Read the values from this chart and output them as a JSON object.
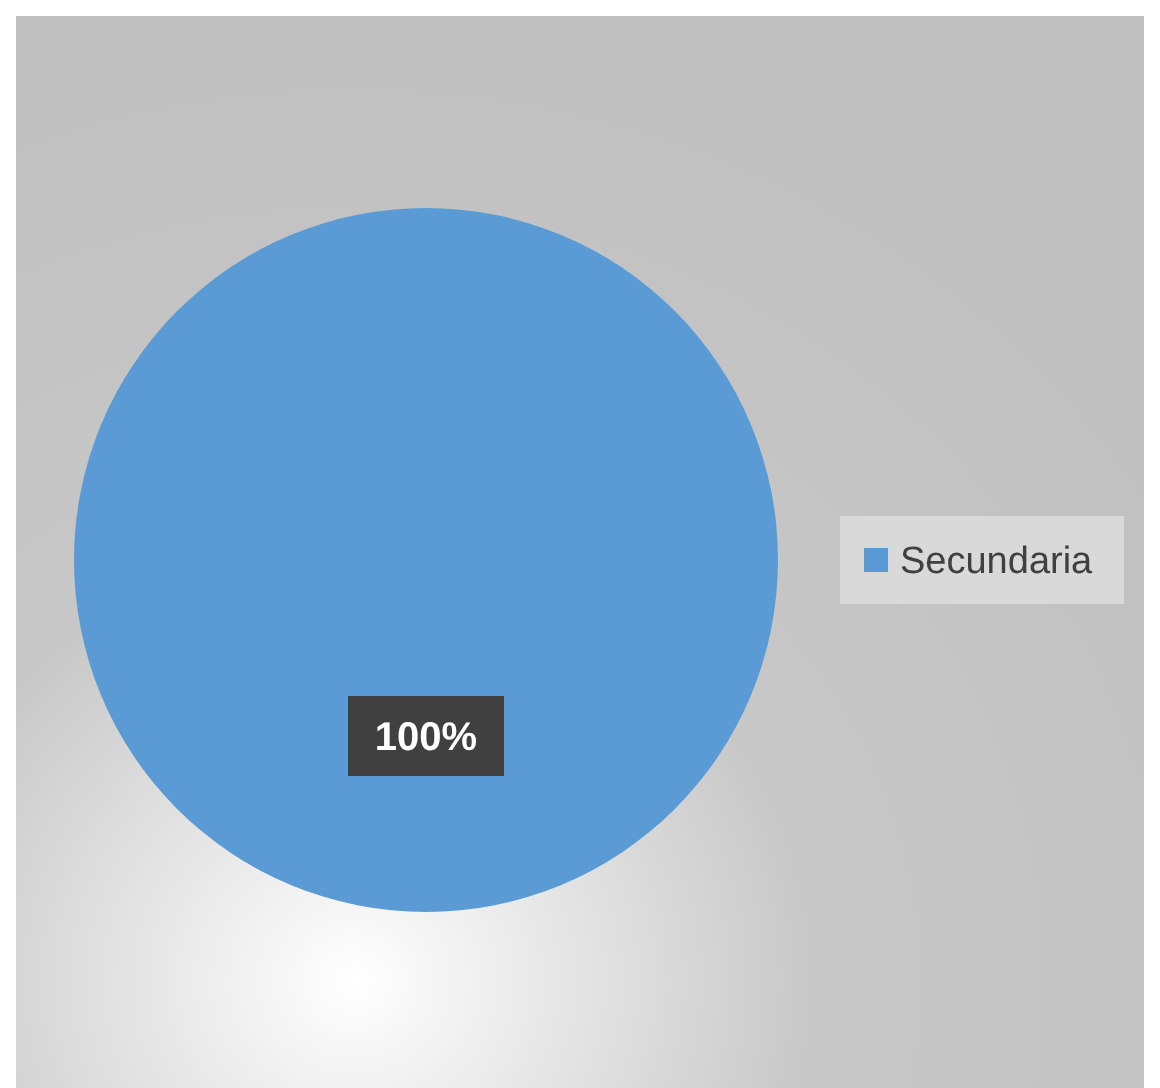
{
  "chart_data": {
    "type": "pie",
    "categories": [
      "Secundaria"
    ],
    "values": [
      100
    ],
    "colors": [
      "#5b9bd5"
    ],
    "value_labels": [
      "100%"
    ],
    "legend": "right"
  }
}
